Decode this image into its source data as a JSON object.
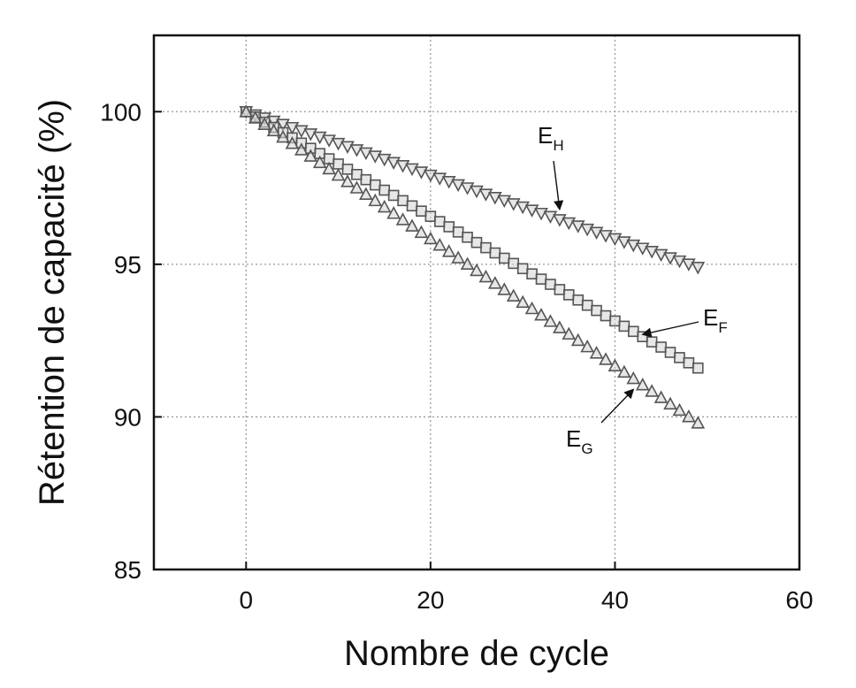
{
  "chart_data": {
    "type": "scatter",
    "title": "",
    "xlabel": "Nombre de cycle",
    "ylabel": "Rétention de capacité (%)",
    "xlim": [
      -10,
      60
    ],
    "ylim": [
      85,
      102.5
    ],
    "x_ticks": [
      0,
      20,
      40,
      60
    ],
    "y_ticks": [
      85,
      90,
      95,
      100
    ],
    "grid": true,
    "series": [
      {
        "id": "E_H",
        "label_main": "E",
        "label_sub": "H",
        "marker": "triangle-down",
        "color": "#555555",
        "x_start": 0,
        "x_end": 49,
        "x_step": 1,
        "y_start": 100.0,
        "y_end": 94.9,
        "annotation_arrow_to": [
          34,
          96.8
        ]
      },
      {
        "id": "E_F",
        "label_main": "E",
        "label_sub": "F",
        "marker": "square",
        "color": "#555555",
        "x_start": 0,
        "x_end": 49,
        "x_step": 1,
        "y_start": 100.0,
        "y_end": 91.6,
        "annotation_arrow_to": [
          43,
          92.7
        ]
      },
      {
        "id": "E_G",
        "label_main": "E",
        "label_sub": "G",
        "marker": "triangle-up",
        "color": "#555555",
        "x_start": 0,
        "x_end": 49,
        "x_step": 1,
        "y_start": 100.0,
        "y_end": 89.8,
        "annotation_arrow_to": [
          42,
          90.9
        ]
      }
    ]
  }
}
